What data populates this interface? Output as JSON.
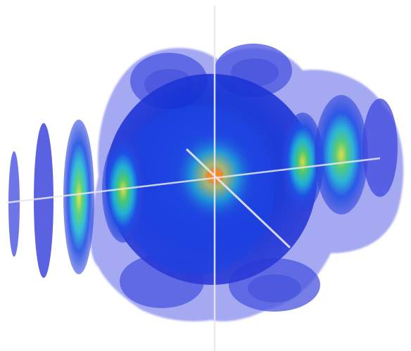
{
  "scene": {
    "background": "#ffffff",
    "colors": {
      "outer_shell": "#5a63e6",
      "mid_shell": "#1f3fe0",
      "inner_shell": "#0b2ad0",
      "cyan": "#1fb6d6",
      "green": "#4fcf6a",
      "yellow": "#e9e23a",
      "orange": "#f08a2a",
      "axis": "#e8e8e8"
    },
    "icons": {
      "vertical_axis": "vertical-axis-line",
      "horizontal_axis": "horizontal-axis-line",
      "diagonal_axis": "diagonal-axis-line"
    }
  }
}
